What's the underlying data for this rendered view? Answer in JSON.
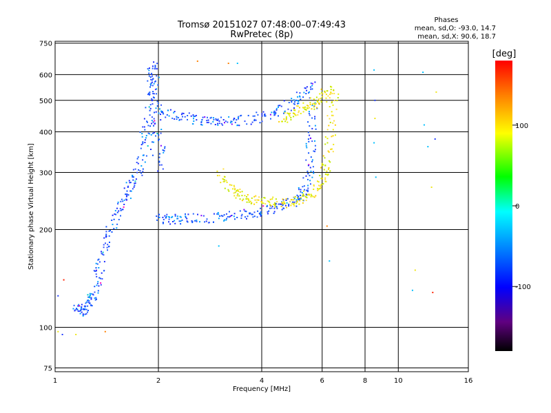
{
  "chart_data": {
    "type": "scatter",
    "title": "Tromsø 20151027 07:48:00–07:49:43",
    "subtitle": "RwPretec (8p)",
    "xlabel": "Frequency [MHz]",
    "ylabel": "Stationary phase Virtual Height [km]",
    "x_scale": "log",
    "y_scale": "log",
    "xlim": [
      1,
      16
    ],
    "ylim": [
      73,
      760
    ],
    "x_ticks": [
      1,
      2,
      4,
      6,
      8,
      10,
      16
    ],
    "y_ticks": [
      75,
      100,
      200,
      300,
      400,
      500,
      600,
      750
    ],
    "grid": true,
    "stats": {
      "title": "Phases",
      "line1": "mean, sd,O: -93.0, 14.7",
      "line2": "mean, sd,X:  90.6, 18.7"
    },
    "colorbar": {
      "label": "[deg]",
      "range": [
        -180,
        180
      ],
      "ticks": [
        100,
        0,
        -100
      ]
    },
    "colors": {
      "o_mode": "#1e3cff",
      "x_mode": "#f0e614"
    },
    "traces": [
      {
        "name": "",
        "mode": "O",
        "x": [
          1.15,
          1.2,
          1.25,
          1.3,
          1.35,
          1.4,
          1.5,
          1.6,
          1.7,
          1.8,
          1.85
        ],
        "y": [
          115,
          112,
          118,
          125,
          150,
          180,
          220,
          250,
          280,
          330,
          450
        ]
      },
      {
        "name": "",
        "mode": "O",
        "x": [
          1.88,
          1.9,
          1.92,
          1.95,
          2.0,
          2.05
        ],
        "y": [
          350,
          480,
          640,
          560,
          420,
          300
        ]
      },
      {
        "name": "",
        "mode": "O",
        "x": [
          2.0,
          2.2,
          2.5,
          3.0,
          3.5,
          4.0,
          4.5,
          5.0,
          5.3,
          5.5,
          5.6,
          5.7
        ],
        "y": [
          215,
          215,
          216,
          218,
          222,
          228,
          235,
          245,
          260,
          300,
          380,
          500
        ]
      },
      {
        "name": "",
        "mode": "O",
        "x": [
          2.0,
          2.3,
          2.7,
          3.0,
          3.4,
          4.0,
          4.6,
          5.2,
          5.6
        ],
        "y": [
          470,
          445,
          432,
          430,
          432,
          445,
          470,
          510,
          560
        ]
      },
      {
        "name": "",
        "mode": "X",
        "x": [
          3.0,
          3.3,
          3.6,
          4.0,
          4.5,
          5.0,
          5.5,
          6.0,
          6.2,
          6.4,
          6.5
        ],
        "y": [
          300,
          265,
          250,
          245,
          240,
          245,
          255,
          280,
          320,
          420,
          560
        ]
      },
      {
        "name": "",
        "mode": "X",
        "x": [
          4.6,
          5.0,
          5.5,
          6.0,
          6.3
        ],
        "y": [
          440,
          460,
          480,
          510,
          540
        ]
      }
    ],
    "scattered_points": [
      {
        "x": 1.02,
        "y": 97
      },
      {
        "x": 1.05,
        "y": 95
      },
      {
        "x": 1.06,
        "y": 140
      },
      {
        "x": 1.02,
        "y": 125
      },
      {
        "x": 1.15,
        "y": 95
      },
      {
        "x": 1.4,
        "y": 97
      },
      {
        "x": 2.6,
        "y": 660
      },
      {
        "x": 3.2,
        "y": 650
      },
      {
        "x": 3.4,
        "y": 650
      },
      {
        "x": 8.5,
        "y": 620
      },
      {
        "x": 8.55,
        "y": 500
      },
      {
        "x": 8.55,
        "y": 440
      },
      {
        "x": 8.5,
        "y": 370
      },
      {
        "x": 8.6,
        "y": 290
      },
      {
        "x": 11.8,
        "y": 610
      },
      {
        "x": 11.9,
        "y": 420
      },
      {
        "x": 12.9,
        "y": 530
      },
      {
        "x": 12.8,
        "y": 380
      },
      {
        "x": 12.2,
        "y": 360
      },
      {
        "x": 12.5,
        "y": 270
      },
      {
        "x": 11.2,
        "y": 150
      },
      {
        "x": 11.0,
        "y": 130
      },
      {
        "x": 12.6,
        "y": 128
      },
      {
        "x": 6.2,
        "y": 205
      },
      {
        "x": 6.3,
        "y": 160
      },
      {
        "x": 3.0,
        "y": 178
      }
    ]
  }
}
